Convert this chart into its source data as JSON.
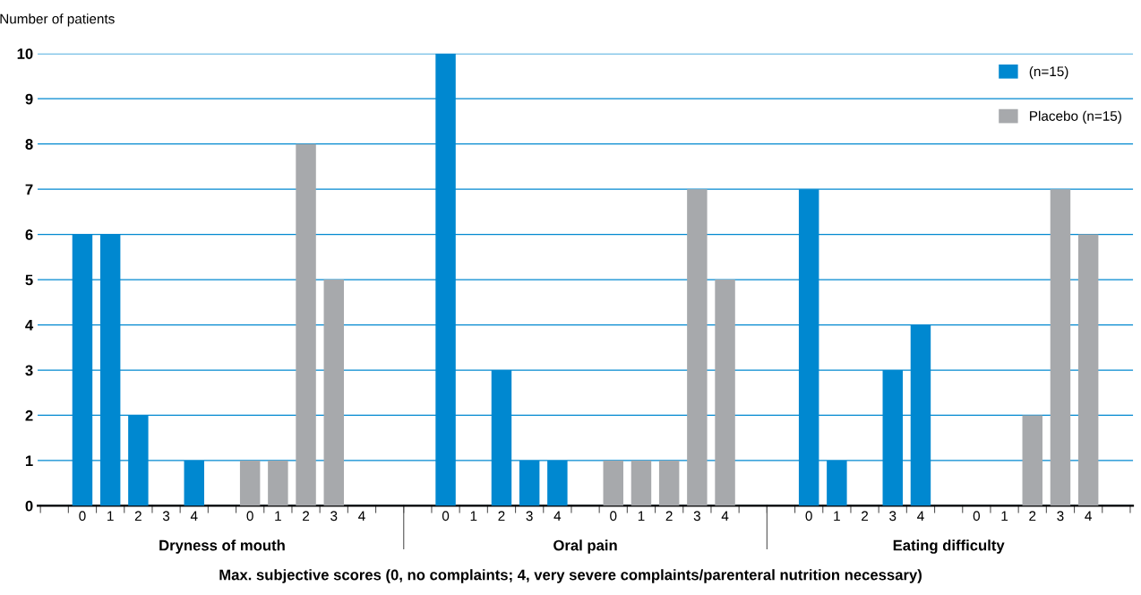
{
  "chart_data": {
    "type": "bar",
    "ylabel": "Number of patients",
    "xlabel": "Max. subjective scores (0, no complaints; 4, very severe complaints/parenteral nutrition necessary)",
    "categories": [
      null,
      "0",
      "1",
      "2",
      "3",
      "4",
      null,
      "0",
      "1",
      "2",
      "3",
      "4",
      null,
      null,
      "0",
      "1",
      "2",
      "3",
      "4",
      null,
      "0",
      "1",
      "2",
      "3",
      "4",
      null,
      null,
      "0",
      "1",
      "2",
      "3",
      "4",
      null,
      "0",
      "1",
      "2",
      "3",
      "4",
      null
    ],
    "series": [
      {
        "name": "(n=15)",
        "color": "#0088d0",
        "values": [
          null,
          6,
          6,
          2,
          0,
          1,
          null,
          null,
          null,
          null,
          null,
          null,
          null,
          null,
          10,
          0,
          3,
          1,
          1,
          null,
          null,
          null,
          null,
          null,
          null,
          null,
          null,
          7,
          1,
          0,
          3,
          4,
          null,
          null,
          null,
          null,
          null,
          null,
          null
        ]
      },
      {
        "name": "Placebo (n=15)",
        "color": "#a7a9ac",
        "values": [
          null,
          null,
          null,
          null,
          null,
          null,
          null,
          1,
          1,
          8,
          5,
          0,
          null,
          null,
          null,
          null,
          null,
          null,
          null,
          null,
          1,
          1,
          1,
          7,
          5,
          null,
          null,
          null,
          null,
          null,
          null,
          null,
          null,
          0,
          0,
          2,
          7,
          6,
          null
        ]
      }
    ],
    "annotations": [
      "Dryness of mouth",
      "Oral pain",
      "Eating difficulty"
    ],
    "ylim": [
      0,
      10
    ],
    "yticks": [
      0,
      1,
      2,
      3,
      4,
      5,
      6,
      7,
      8,
      9,
      10
    ],
    "grid": "y",
    "legend": "top right"
  }
}
